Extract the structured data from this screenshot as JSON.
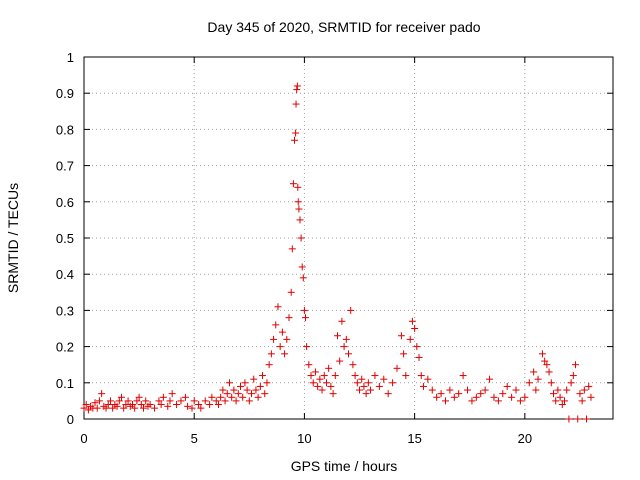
{
  "chart_data": {
    "type": "scatter",
    "title": "Day 345 of 2020, SRMTID for receiver pado",
    "xlabel": "GPS time / hours",
    "ylabel": "SRMTID / TECUs",
    "xlim": [
      0,
      24
    ],
    "ylim": [
      0,
      1
    ],
    "x_ticks": [
      0,
      5,
      10,
      15,
      20
    ],
    "x_tick_labels": [
      "0",
      "5",
      "10",
      "15",
      "20"
    ],
    "y_ticks": [
      0,
      0.1,
      0.2,
      0.3,
      0.4,
      0.5,
      0.6,
      0.7,
      0.8,
      0.9,
      1
    ],
    "y_tick_labels": [
      "0",
      "0.1",
      "0.2",
      "0.3",
      "0.4",
      "0.5",
      "0.6",
      "0.7",
      "0.8",
      "0.9",
      "1"
    ],
    "grid": true,
    "marker": "+",
    "color": "#e00000",
    "series": [
      {
        "name": "SRMTID",
        "points": [
          [
            0.0,
            0.03
          ],
          [
            0.1,
            0.04
          ],
          [
            0.2,
            0.025
          ],
          [
            0.3,
            0.035
          ],
          [
            0.4,
            0.03
          ],
          [
            0.5,
            0.045
          ],
          [
            0.6,
            0.03
          ],
          [
            0.7,
            0.05
          ],
          [
            0.8,
            0.07
          ],
          [
            0.9,
            0.035
          ],
          [
            1.0,
            0.03
          ],
          [
            1.1,
            0.04
          ],
          [
            1.2,
            0.05
          ],
          [
            1.3,
            0.03
          ],
          [
            1.4,
            0.04
          ],
          [
            1.5,
            0.035
          ],
          [
            1.6,
            0.05
          ],
          [
            1.7,
            0.06
          ],
          [
            1.8,
            0.03
          ],
          [
            1.9,
            0.04
          ],
          [
            2.0,
            0.05
          ],
          [
            2.1,
            0.035
          ],
          [
            2.2,
            0.04
          ],
          [
            2.3,
            0.03
          ],
          [
            2.4,
            0.05
          ],
          [
            2.5,
            0.06
          ],
          [
            2.6,
            0.04
          ],
          [
            2.7,
            0.03
          ],
          [
            2.8,
            0.05
          ],
          [
            2.9,
            0.035
          ],
          [
            3.0,
            0.04
          ],
          [
            3.2,
            0.03
          ],
          [
            3.4,
            0.05
          ],
          [
            3.5,
            0.04
          ],
          [
            3.6,
            0.06
          ],
          [
            3.8,
            0.035
          ],
          [
            3.9,
            0.05
          ],
          [
            4.0,
            0.07
          ],
          [
            4.2,
            0.04
          ],
          [
            4.4,
            0.05
          ],
          [
            4.6,
            0.06
          ],
          [
            4.7,
            0.035
          ],
          [
            4.9,
            0.03
          ],
          [
            5.0,
            0.05
          ],
          [
            5.2,
            0.04
          ],
          [
            5.3,
            0.03
          ],
          [
            5.5,
            0.05
          ],
          [
            5.7,
            0.04
          ],
          [
            5.8,
            0.06
          ],
          [
            6.0,
            0.05
          ],
          [
            6.1,
            0.04
          ],
          [
            6.2,
            0.06
          ],
          [
            6.3,
            0.08
          ],
          [
            6.4,
            0.05
          ],
          [
            6.5,
            0.07
          ],
          [
            6.6,
            0.1
          ],
          [
            6.7,
            0.06
          ],
          [
            6.8,
            0.08
          ],
          [
            6.9,
            0.05
          ],
          [
            7.0,
            0.07
          ],
          [
            7.1,
            0.09
          ],
          [
            7.2,
            0.06
          ],
          [
            7.3,
            0.1
          ],
          [
            7.4,
            0.08
          ],
          [
            7.5,
            0.05
          ],
          [
            7.6,
            0.07
          ],
          [
            7.7,
            0.11
          ],
          [
            7.8,
            0.08
          ],
          [
            7.9,
            0.06
          ],
          [
            8.0,
            0.09
          ],
          [
            8.1,
            0.12
          ],
          [
            8.2,
            0.07
          ],
          [
            8.3,
            0.1
          ],
          [
            8.4,
            0.15
          ],
          [
            8.5,
            0.18
          ],
          [
            8.6,
            0.22
          ],
          [
            8.7,
            0.26
          ],
          [
            8.8,
            0.31
          ],
          [
            8.9,
            0.2
          ],
          [
            9.0,
            0.24
          ],
          [
            9.1,
            0.18
          ],
          [
            9.2,
            0.22
          ],
          [
            9.3,
            0.28
          ],
          [
            9.4,
            0.35
          ],
          [
            9.45,
            0.47
          ],
          [
            9.5,
            0.65
          ],
          [
            9.55,
            0.77
          ],
          [
            9.6,
            0.79
          ],
          [
            9.62,
            0.87
          ],
          [
            9.65,
            0.91
          ],
          [
            9.68,
            0.92
          ],
          [
            9.7,
            0.64
          ],
          [
            9.72,
            0.6
          ],
          [
            9.75,
            0.58
          ],
          [
            9.8,
            0.55
          ],
          [
            9.85,
            0.5
          ],
          [
            9.9,
            0.42
          ],
          [
            9.95,
            0.39
          ],
          [
            10.0,
            0.3
          ],
          [
            10.05,
            0.28
          ],
          [
            10.1,
            0.2
          ],
          [
            10.2,
            0.15
          ],
          [
            10.3,
            0.12
          ],
          [
            10.4,
            0.1
          ],
          [
            10.5,
            0.13
          ],
          [
            10.6,
            0.09
          ],
          [
            10.7,
            0.11
          ],
          [
            10.8,
            0.08
          ],
          [
            10.9,
            0.12
          ],
          [
            11.0,
            0.1
          ],
          [
            11.1,
            0.14
          ],
          [
            11.2,
            0.09
          ],
          [
            11.3,
            0.07
          ],
          [
            11.4,
            0.12
          ],
          [
            11.5,
            0.23
          ],
          [
            11.6,
            0.16
          ],
          [
            11.7,
            0.27
          ],
          [
            11.8,
            0.2
          ],
          [
            11.9,
            0.22
          ],
          [
            12.0,
            0.18
          ],
          [
            12.1,
            0.3
          ],
          [
            12.2,
            0.15
          ],
          [
            12.3,
            0.12
          ],
          [
            12.4,
            0.1
          ],
          [
            12.5,
            0.08
          ],
          [
            12.6,
            0.11
          ],
          [
            12.7,
            0.09
          ],
          [
            12.8,
            0.07
          ],
          [
            12.9,
            0.1
          ],
          [
            13.0,
            0.08
          ],
          [
            13.2,
            0.12
          ],
          [
            13.4,
            0.09
          ],
          [
            13.6,
            0.11
          ],
          [
            13.8,
            0.07
          ],
          [
            14.0,
            0.1
          ],
          [
            14.2,
            0.14
          ],
          [
            14.4,
            0.23
          ],
          [
            14.5,
            0.18
          ],
          [
            14.6,
            0.12
          ],
          [
            14.8,
            0.22
          ],
          [
            14.9,
            0.27
          ],
          [
            15.0,
            0.25
          ],
          [
            15.1,
            0.2
          ],
          [
            15.2,
            0.17
          ],
          [
            15.3,
            0.12
          ],
          [
            15.4,
            0.09
          ],
          [
            15.6,
            0.11
          ],
          [
            15.8,
            0.08
          ],
          [
            16.0,
            0.06
          ],
          [
            16.2,
            0.07
          ],
          [
            16.4,
            0.05
          ],
          [
            16.6,
            0.08
          ],
          [
            16.8,
            0.06
          ],
          [
            17.0,
            0.07
          ],
          [
            17.2,
            0.12
          ],
          [
            17.4,
            0.08
          ],
          [
            17.6,
            0.05
          ],
          [
            17.8,
            0.06
          ],
          [
            18.0,
            0.07
          ],
          [
            18.2,
            0.08
          ],
          [
            18.4,
            0.11
          ],
          [
            18.6,
            0.06
          ],
          [
            18.8,
            0.05
          ],
          [
            19.0,
            0.07
          ],
          [
            19.2,
            0.09
          ],
          [
            19.4,
            0.06
          ],
          [
            19.6,
            0.08
          ],
          [
            19.8,
            0.05
          ],
          [
            20.0,
            0.06
          ],
          [
            20.2,
            0.1
          ],
          [
            20.4,
            0.13
          ],
          [
            20.5,
            0.08
          ],
          [
            20.6,
            0.11
          ],
          [
            20.8,
            0.18
          ],
          [
            20.9,
            0.16
          ],
          [
            21.0,
            0.15
          ],
          [
            21.1,
            0.13
          ],
          [
            21.2,
            0.1
          ],
          [
            21.3,
            0.07
          ],
          [
            21.4,
            0.05
          ],
          [
            21.5,
            0.08
          ],
          [
            21.6,
            0.06
          ],
          [
            21.7,
            0.04
          ],
          [
            21.8,
            0.05
          ],
          [
            21.9,
            0.08
          ],
          [
            22.0,
            0.0
          ],
          [
            22.1,
            0.1
          ],
          [
            22.2,
            0.12
          ],
          [
            22.3,
            0.15
          ],
          [
            22.4,
            0.0
          ],
          [
            22.5,
            0.07
          ],
          [
            22.6,
            0.05
          ],
          [
            22.7,
            0.08
          ],
          [
            22.8,
            0.0
          ],
          [
            22.9,
            0.09
          ],
          [
            23.0,
            0.06
          ]
        ]
      }
    ]
  }
}
